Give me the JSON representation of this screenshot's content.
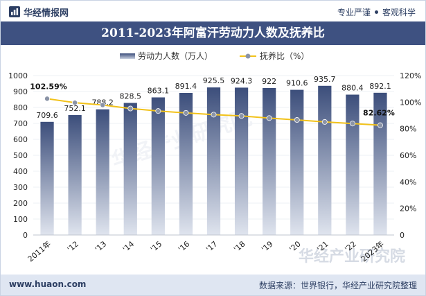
{
  "header": {
    "brand": "华经情报网",
    "slogan_left": "专业严谨",
    "slogan_right": "客观科学"
  },
  "title": "2011-2023年阿富汗劳动力人数及抚养比",
  "footer": {
    "site": "www.huaon.com",
    "source": "数据来源：世界银行，华经产业研究院整理"
  },
  "watermark": "华经产业研究院",
  "colors": {
    "bar_top": "#3c4e7b",
    "bar_bottom": "#dfe4ee",
    "line": "#f2c21a",
    "marker": "#8a93a6",
    "title_bg": "#3e5181"
  },
  "chart_data": {
    "type": "bar+line",
    "categories": [
      "2011年",
      "'12",
      "'13",
      "'14",
      "'15",
      "'16",
      "'17",
      "'18",
      "'19",
      "'20",
      "'21",
      "'22",
      "2023年"
    ],
    "series": [
      {
        "name": "劳动力人数（万人）",
        "type": "bar",
        "axis": "left",
        "values": [
          709.6,
          752.1,
          788.2,
          828.5,
          863.1,
          891.4,
          925.5,
          924.3,
          922,
          910.6,
          935.7,
          880.4,
          892.1
        ],
        "labels": [
          "709.6",
          "752.1",
          "788.2",
          "828.5",
          "863.1",
          "891.4",
          "925.5",
          "924.3",
          "922",
          "910.6",
          "935.7",
          "880.4",
          "892.1"
        ]
      },
      {
        "name": "抚养比（%）",
        "type": "line",
        "axis": "right",
        "values": [
          102.59,
          99.6,
          97.8,
          95.2,
          93.3,
          91.9,
          90.6,
          89.6,
          88.0,
          86.6,
          85.1,
          83.9,
          82.62
        ],
        "labels": [
          "102.59%",
          "",
          "",
          "",
          "",
          "",
          "",
          "",
          "",
          "",
          "",
          "",
          "82.62%"
        ]
      }
    ],
    "left_axis": {
      "min": 0,
      "max": 1000,
      "step": 100,
      "ticks": [
        "0",
        "100",
        "200",
        "300",
        "400",
        "500",
        "600",
        "700",
        "800",
        "900",
        "1000"
      ]
    },
    "right_axis": {
      "min": 0,
      "max": 120,
      "step": 20,
      "ticks": [
        "0",
        "20%",
        "40%",
        "60%",
        "80%",
        "100%",
        "120%"
      ]
    },
    "legend_position": "top-center"
  }
}
